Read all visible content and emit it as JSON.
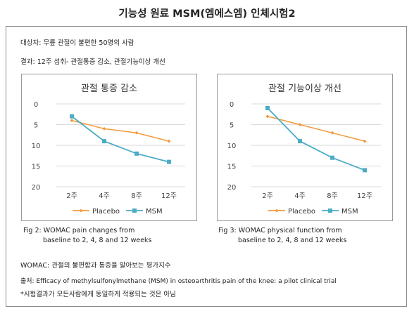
{
  "title": "기능성 원료 MSM(엠에스엠) 인체시험2",
  "subject_line": "대상자: 무릎 관절이 불편한 50명의 사람",
  "result_line": "결과: 12주 섭취- 관절통증 감소, 관절기능이상 개선",
  "womac_note": "WOMAC: 관절의 불편함과 통증을 알아보는 평가지수",
  "source_line": "출처: Efficacy of methylsulfonylmethane (MSM) in osteoarthritis pain of the knee: a pilot clinical trial",
  "disclaimer": "*시험결과가 모든사람에게 동일하게 적용되는 것은 아님",
  "captions": [
    {
      "line1": "Fig 2: WOMAC pain changes from",
      "line2": "baseline to 2, 4, 8 and 12 weeks"
    },
    {
      "line1": "Fig 3: WOMAC physical function from",
      "line2": "baseline to 2, 4, 8 and 12 weeks"
    }
  ],
  "colors": {
    "placebo": "#f39a3c",
    "msm": "#4bacc6"
  },
  "chart_data": [
    {
      "type": "line",
      "title": "관절 통증 감소",
      "categories": [
        "2주",
        "4주",
        "8주",
        "12주"
      ],
      "yticks": [
        0,
        5,
        10,
        15,
        20
      ],
      "ylim": [
        0,
        20
      ],
      "y_inverted": true,
      "legend": "bottom",
      "series": [
        {
          "name": "Placebo",
          "values": [
            4,
            6,
            7,
            9
          ]
        },
        {
          "name": "MSM",
          "values": [
            3,
            9,
            12,
            14
          ]
        }
      ]
    },
    {
      "type": "line",
      "title": "관절 기능이상 개선",
      "categories": [
        "2주",
        "4주",
        "8주",
        "12주"
      ],
      "yticks": [
        0,
        5,
        10,
        15,
        20
      ],
      "ylim": [
        0,
        20
      ],
      "y_inverted": true,
      "legend": "bottom",
      "series": [
        {
          "name": "Placebo",
          "values": [
            3,
            5,
            7,
            9
          ]
        },
        {
          "name": "MSM",
          "values": [
            1,
            9,
            13,
            16
          ]
        }
      ]
    }
  ]
}
